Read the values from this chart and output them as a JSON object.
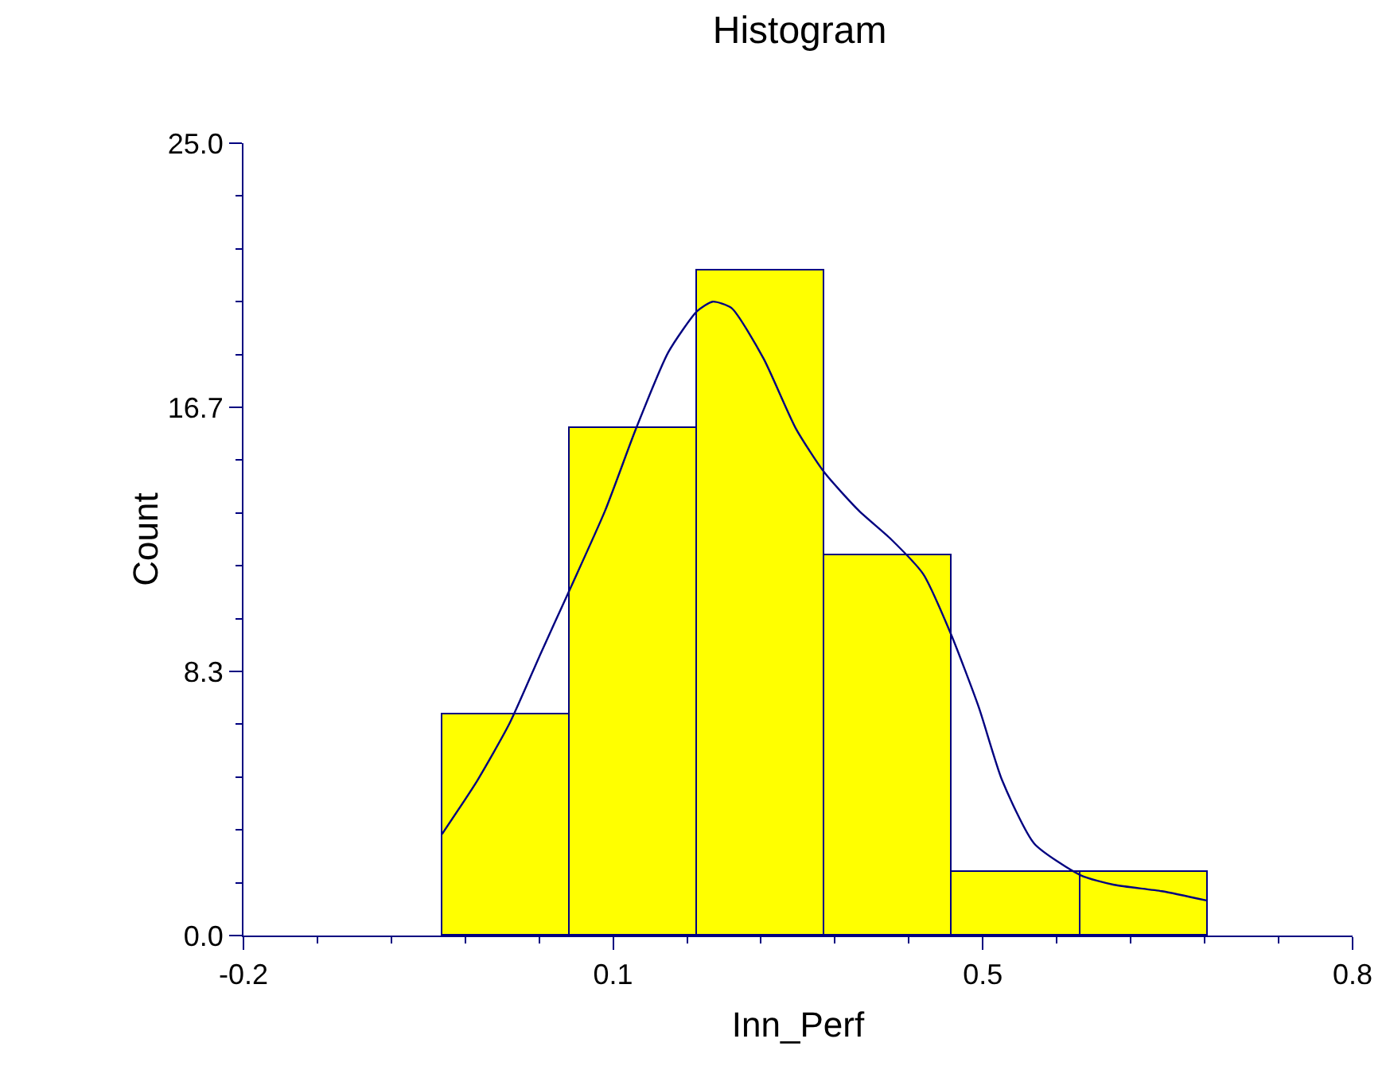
{
  "chart_data": {
    "type": "histogram",
    "title": "Histogram",
    "xlabel": "Inn_Perf",
    "ylabel": "Count",
    "bins": [
      -0.021,
      0.094,
      0.209,
      0.324,
      0.439,
      0.554,
      0.669
    ],
    "values": [
      7,
      16,
      21,
      12,
      2,
      2
    ],
    "color": "#ffff00",
    "series": [
      {
        "type": "line",
        "color": "#000080",
        "x": [
          -0.021,
          0.011,
          0.04,
          0.068,
          0.094,
          0.126,
          0.154,
          0.183,
          0.209,
          0.223,
          0.24,
          0.269,
          0.298,
          0.324,
          0.355,
          0.384,
          0.413,
          0.438,
          0.463,
          0.484,
          0.513,
          0.555,
          0.585,
          0.628,
          0.669
        ],
        "values": [
          3.2,
          4.9,
          6.7,
          8.9,
          10.9,
          13.4,
          16.0,
          18.4,
          19.7,
          20.0,
          19.8,
          18.2,
          16.0,
          14.6,
          13.4,
          12.5,
          11.4,
          9.5,
          7.2,
          4.9,
          2.9,
          1.9,
          1.6,
          1.4,
          1.1
        ]
      }
    ],
    "xlim": [
      -0.2,
      0.8
    ],
    "xticks": [
      -0.2,
      {
        "value": 0.1333,
        "label": "0.1"
      },
      {
        "value": 0.4667,
        "label": "0.5"
      },
      0.8
    ],
    "ylim": [
      0,
      25
    ],
    "yticks": [
      {
        "value": 0,
        "label": "0.0"
      },
      {
        "value": 8.333,
        "label": "8.3"
      },
      {
        "value": 16.667,
        "label": "16.7"
      },
      {
        "value": 25,
        "label": "25.0"
      }
    ],
    "grid": false
  }
}
